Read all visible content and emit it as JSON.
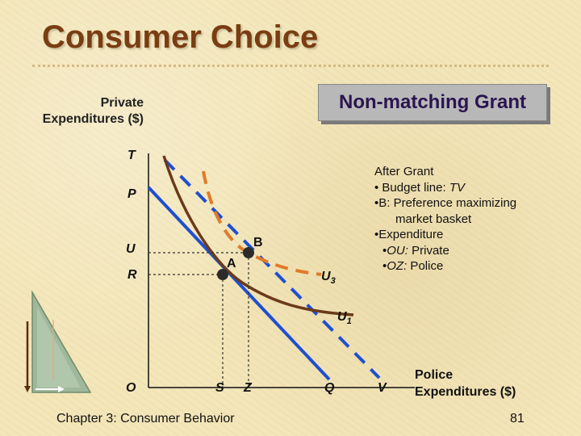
{
  "title": "Consumer Choice",
  "grant_box": "Non-matching Grant",
  "y_axis_title": [
    "Private",
    "Expenditures ($)"
  ],
  "x_axis_title": [
    "Police",
    "Expenditures ($)"
  ],
  "y_points": {
    "T": "T",
    "P": "P",
    "U": "U",
    "R": "R"
  },
  "x_points": {
    "O": "O",
    "S": "S",
    "Z": "Z",
    "Q": "Q",
    "V": "V"
  },
  "point_labels": {
    "A": "A",
    "B": "B"
  },
  "curve_labels": {
    "U3_base": "U",
    "U3_sub": "3",
    "U1_base": "U",
    "U1_sub": "1"
  },
  "info": {
    "l1": "After Grant",
    "l2_pre": "• Budget line: ",
    "l2_em": "TV",
    "l3": "•B: Preference maximizing",
    "l4": "market basket",
    "l5": "•Expenditure",
    "l6_pre": "•",
    "l6_em": "OU:",
    "l6_post": " Private",
    "l7_pre": "•",
    "l7_em": "OZ:",
    "l7_post": " Police"
  },
  "footer": {
    "chapter": "Chapter 3: Consumer Behavior",
    "page": "81"
  },
  "colors": {
    "title": "#7a3d12",
    "budget_before": "#1f4fd1",
    "budget_after": "#1f4fd1",
    "indifference": "#6b3a1a",
    "indifference_dashed": "#e07a2a",
    "point": "#2b2b2b"
  }
}
